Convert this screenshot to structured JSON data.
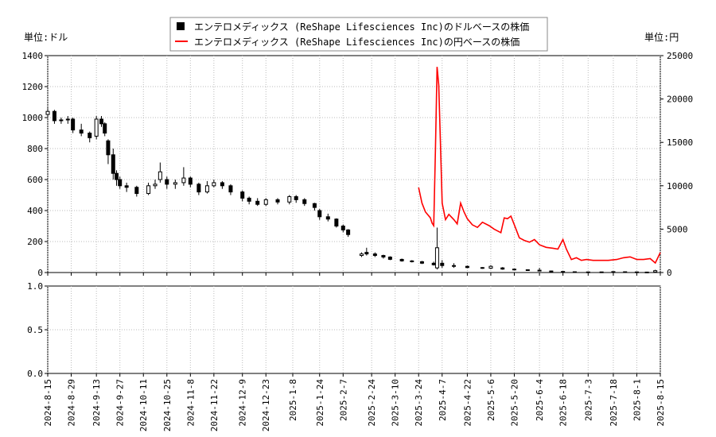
{
  "chart_data": {
    "type": "candlestick+line",
    "legend": {
      "placement": "top-center",
      "entries": [
        {
          "label": "エンテロメディックス (ReShape Lifesciences Inc)のドルベースの株価",
          "color": "#000000",
          "marker": "square"
        },
        {
          "label": "エンテロメディックス (ReShape Lifesciences Inc)の円ベースの株価",
          "color": "#ff0000",
          "marker": "line"
        }
      ]
    },
    "left_unit_label": "単位:ドル",
    "right_unit_label": "単位:円",
    "y_left": {
      "min": 0,
      "max": 1400,
      "ticks": [
        0,
        200,
        400,
        600,
        800,
        1000,
        1200,
        1400
      ]
    },
    "y_right": {
      "min": 0,
      "max": 25000,
      "ticks": [
        0,
        5000,
        10000,
        15000,
        20000,
        25000
      ]
    },
    "lower_panel": {
      "min": 0.0,
      "max": 1.0,
      "ticks": [
        "0.0",
        "0.5",
        "1.0"
      ]
    },
    "x_start": "2024-08-15",
    "x_end": "2025-08-15",
    "x_ticks": [
      "2024-8-15",
      "2024-8-29",
      "2024-9-13",
      "2024-9-27",
      "2024-10-11",
      "2024-10-25",
      "2024-11-8",
      "2024-11-22",
      "2024-12-9",
      "2024-12-23",
      "2025-1-8",
      "2025-1-24",
      "2025-2-7",
      "2025-2-24",
      "2025-3-10",
      "2025-3-24",
      "2025-4-7",
      "2025-4-22",
      "2025-5-6",
      "2025-5-20",
      "2025-6-4",
      "2025-6-18",
      "2025-7-3",
      "2025-7-18",
      "2025-8-1",
      "2025-8-15"
    ],
    "series": [
      {
        "name": "エンテロメディックス (ReShape Lifesciences Inc)のドルベースの株価",
        "axis": "left",
        "color": "#000000",
        "values": [
          [
            "2024-08-15",
            1020,
            1060,
            1000,
            1040
          ],
          [
            "2024-08-19",
            1040,
            1050,
            960,
            980
          ],
          [
            "2024-08-23",
            980,
            1000,
            960,
            985
          ],
          [
            "2024-08-27",
            985,
            1010,
            960,
            990
          ],
          [
            "2024-08-30",
            990,
            1000,
            900,
            920
          ],
          [
            "2024-09-04",
            920,
            960,
            880,
            900
          ],
          [
            "2024-09-09",
            900,
            910,
            840,
            870
          ],
          [
            "2024-09-13",
            880,
            1010,
            860,
            990
          ],
          [
            "2024-09-16",
            990,
            1010,
            940,
            960
          ],
          [
            "2024-09-18",
            960,
            970,
            880,
            900
          ],
          [
            "2024-09-20",
            850,
            860,
            700,
            760
          ],
          [
            "2024-09-23",
            760,
            800,
            600,
            640
          ],
          [
            "2024-09-25",
            640,
            660,
            560,
            600
          ],
          [
            "2024-09-27",
            600,
            620,
            540,
            560
          ],
          [
            "2024-10-01",
            560,
            580,
            520,
            550
          ],
          [
            "2024-10-07",
            550,
            560,
            490,
            510
          ],
          [
            "2024-10-14",
            510,
            580,
            500,
            560
          ],
          [
            "2024-10-18",
            560,
            600,
            540,
            570
          ],
          [
            "2024-10-21",
            600,
            710,
            580,
            650
          ],
          [
            "2024-10-25",
            600,
            620,
            540,
            570
          ],
          [
            "2024-10-30",
            570,
            600,
            540,
            580
          ],
          [
            "2024-11-04",
            580,
            680,
            560,
            610
          ],
          [
            "2024-11-08",
            610,
            620,
            550,
            570
          ],
          [
            "2024-11-13",
            570,
            580,
            500,
            520
          ],
          [
            "2024-11-18",
            520,
            590,
            510,
            560
          ],
          [
            "2024-11-22",
            560,
            600,
            550,
            580
          ],
          [
            "2024-11-27",
            580,
            590,
            540,
            560
          ],
          [
            "2024-12-02",
            560,
            570,
            500,
            520
          ],
          [
            "2024-12-09",
            520,
            530,
            460,
            480
          ],
          [
            "2024-12-13",
            480,
            490,
            440,
            460
          ],
          [
            "2024-12-18",
            460,
            480,
            430,
            440
          ],
          [
            "2024-12-23",
            440,
            480,
            430,
            470
          ],
          [
            "2024-12-30",
            470,
            480,
            440,
            455
          ],
          [
            "2025-01-06",
            455,
            500,
            440,
            490
          ],
          [
            "2025-01-10",
            490,
            500,
            450,
            470
          ],
          [
            "2025-01-15",
            470,
            480,
            430,
            445
          ],
          [
            "2025-01-21",
            445,
            450,
            400,
            420
          ],
          [
            "2025-01-24",
            400,
            410,
            340,
            360
          ],
          [
            "2025-01-29",
            360,
            380,
            330,
            345
          ],
          [
            "2025-02-03",
            345,
            350,
            290,
            300
          ],
          [
            "2025-02-07",
            300,
            310,
            260,
            275
          ],
          [
            "2025-02-10",
            275,
            280,
            230,
            245
          ],
          [
            "2025-02-18",
            110,
            130,
            100,
            120
          ],
          [
            "2025-02-21",
            130,
            160,
            110,
            120
          ],
          [
            "2025-02-26",
            120,
            130,
            100,
            110
          ],
          [
            "2025-03-03",
            110,
            115,
            90,
            100
          ],
          [
            "2025-03-07",
            100,
            105,
            80,
            85
          ],
          [
            "2025-03-14",
            85,
            90,
            70,
            75
          ],
          [
            "2025-03-20",
            75,
            80,
            65,
            70
          ],
          [
            "2025-03-26",
            70,
            75,
            55,
            60
          ],
          [
            "2025-04-02",
            60,
            70,
            45,
            50
          ],
          [
            "2025-04-04",
            30,
            290,
            20,
            160
          ],
          [
            "2025-04-07",
            60,
            80,
            30,
            45
          ],
          [
            "2025-04-14",
            45,
            60,
            30,
            40
          ],
          [
            "2025-04-22",
            40,
            45,
            28,
            32
          ],
          [
            "2025-05-01",
            32,
            35,
            24,
            28
          ],
          [
            "2025-05-06",
            28,
            48,
            22,
            40
          ],
          [
            "2025-05-13",
            30,
            35,
            18,
            22
          ],
          [
            "2025-05-20",
            22,
            25,
            15,
            18
          ],
          [
            "2025-05-28",
            18,
            20,
            12,
            14
          ],
          [
            "2025-06-04",
            14,
            30,
            10,
            15
          ],
          [
            "2025-06-11",
            10,
            12,
            6,
            7
          ],
          [
            "2025-06-18",
            7,
            8,
            4,
            5
          ],
          [
            "2025-06-25",
            5,
            6,
            3,
            4
          ],
          [
            "2025-07-03",
            4,
            5,
            3,
            4
          ],
          [
            "2025-07-11",
            4,
            5,
            3,
            4
          ],
          [
            "2025-07-18",
            4,
            8,
            3,
            6
          ],
          [
            "2025-07-25",
            5,
            6,
            3,
            4
          ],
          [
            "2025-08-01",
            4,
            6,
            3,
            4
          ],
          [
            "2025-08-07",
            3,
            4,
            2,
            3
          ],
          [
            "2025-08-12",
            3,
            18,
            2,
            12
          ]
        ]
      },
      {
        "name": "エンテロメディックス (ReShape Lifesciences Inc)の円ベースの株価",
        "axis": "right",
        "color": "#ff0000",
        "values": [
          [
            "2025-03-24",
            9800
          ],
          [
            "2025-03-26",
            8000
          ],
          [
            "2025-03-28",
            7000
          ],
          [
            "2025-03-31",
            6300
          ],
          [
            "2025-04-01",
            5700
          ],
          [
            "2025-04-02",
            5400
          ],
          [
            "2025-04-03",
            14000
          ],
          [
            "2025-04-04",
            23700
          ],
          [
            "2025-04-05",
            21600
          ],
          [
            "2025-04-06",
            15000
          ],
          [
            "2025-04-07",
            8000
          ],
          [
            "2025-04-09",
            6100
          ],
          [
            "2025-04-11",
            6700
          ],
          [
            "2025-04-14",
            6100
          ],
          [
            "2025-04-16",
            5600
          ],
          [
            "2025-04-18",
            8000
          ],
          [
            "2025-04-20",
            7000
          ],
          [
            "2025-04-22",
            6200
          ],
          [
            "2025-04-25",
            5500
          ],
          [
            "2025-04-28",
            5200
          ],
          [
            "2025-05-01",
            5800
          ],
          [
            "2025-05-05",
            5400
          ],
          [
            "2025-05-08",
            5000
          ],
          [
            "2025-05-12",
            4600
          ],
          [
            "2025-05-14",
            6300
          ],
          [
            "2025-05-16",
            6200
          ],
          [
            "2025-05-18",
            6500
          ],
          [
            "2025-05-20",
            5500
          ],
          [
            "2025-05-23",
            4000
          ],
          [
            "2025-05-26",
            3700
          ],
          [
            "2025-05-29",
            3500
          ],
          [
            "2025-06-01",
            3800
          ],
          [
            "2025-06-04",
            3200
          ],
          [
            "2025-06-08",
            2900
          ],
          [
            "2025-06-12",
            2800
          ],
          [
            "2025-06-15",
            2700
          ],
          [
            "2025-06-18",
            3800
          ],
          [
            "2025-06-20",
            2700
          ],
          [
            "2025-06-23",
            1500
          ],
          [
            "2025-06-26",
            1700
          ],
          [
            "2025-06-29",
            1400
          ],
          [
            "2025-07-02",
            1500
          ],
          [
            "2025-07-06",
            1400
          ],
          [
            "2025-07-10",
            1400
          ],
          [
            "2025-07-15",
            1400
          ],
          [
            "2025-07-20",
            1500
          ],
          [
            "2025-07-24",
            1700
          ],
          [
            "2025-07-28",
            1800
          ],
          [
            "2025-08-01",
            1500
          ],
          [
            "2025-08-05",
            1500
          ],
          [
            "2025-08-09",
            1600
          ],
          [
            "2025-08-12",
            1100
          ],
          [
            "2025-08-15",
            2300
          ]
        ]
      }
    ]
  }
}
